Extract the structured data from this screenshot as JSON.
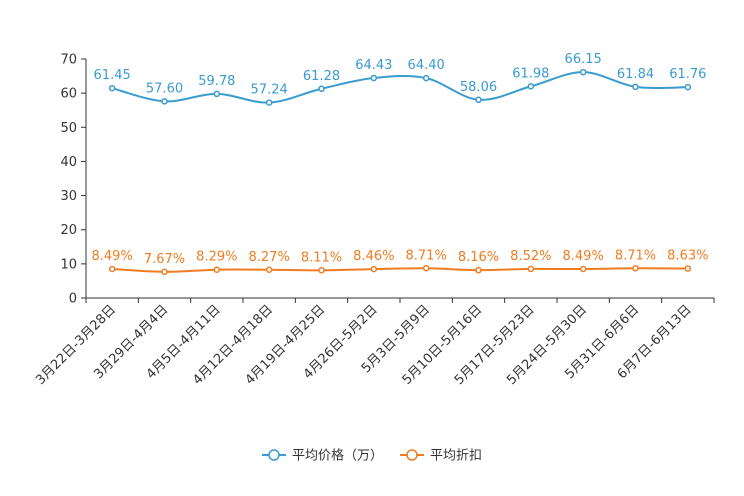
{
  "chart_data": {
    "type": "line",
    "title": "",
    "xlabel": "",
    "ylabel": "",
    "ylim": [
      0,
      70
    ],
    "yticks": [
      "0",
      "10",
      "20",
      "30",
      "40",
      "50",
      "60",
      "70"
    ],
    "categories": [
      "3月22日-3月28日",
      "3月29日-4月4日",
      "4月5日-4月11日",
      "4月12日-4月18日",
      "4月19日-4月25日",
      "4月26日-5月2日",
      "5月3日-5月9日",
      "5月10日-5月16日",
      "5月17日-5月23日",
      "5月24日-5月30日",
      "5月31日-6月6日",
      "6月7日-6月13日"
    ],
    "series": [
      {
        "name": "平均价格（万）",
        "color": "#3a9bcf",
        "values": [
          61.45,
          57.6,
          59.78,
          57.24,
          61.28,
          64.43,
          64.4,
          58.06,
          61.98,
          66.15,
          61.84,
          61.76
        ],
        "labels": [
          "61.45",
          "57.60",
          "59.78",
          "57.24",
          "61.28",
          "64.43",
          "64.40",
          "58.06",
          "61.98",
          "66.15",
          "61.84",
          "61.76"
        ]
      },
      {
        "name": "平均折扣",
        "color": "#f07c22",
        "values": [
          8.49,
          7.67,
          8.29,
          8.27,
          8.11,
          8.46,
          8.71,
          8.16,
          8.52,
          8.49,
          8.71,
          8.63
        ],
        "labels": [
          "8.49%",
          "7.67%",
          "8.29%",
          "8.27%",
          "8.11%",
          "8.46%",
          "8.71%",
          "8.16%",
          "8.52%",
          "8.49%",
          "8.71%",
          "8.63%"
        ]
      }
    ],
    "legend_position": "bottom-center",
    "grid": false
  }
}
